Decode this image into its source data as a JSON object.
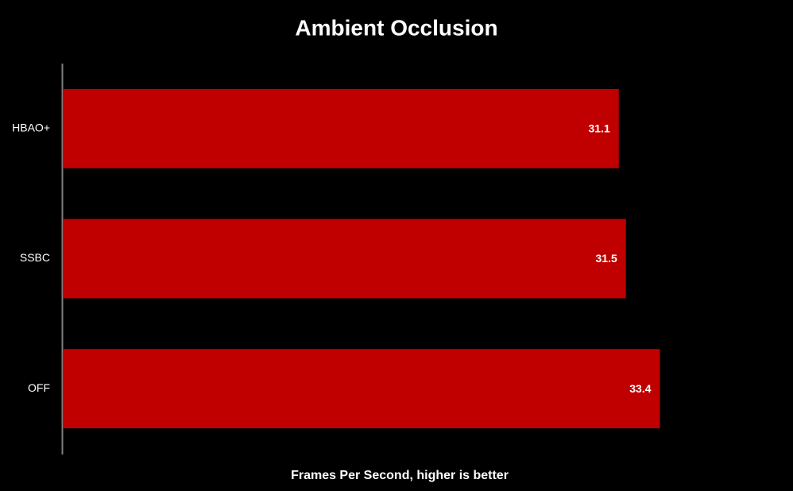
{
  "chart_data": {
    "type": "hbar",
    "title": "Ambient Occlusion",
    "x_label": "Frames Per Second, higher is better",
    "categories": [
      "HBAO+",
      "SSBC",
      "OFF"
    ],
    "values": [
      31.1,
      31.5,
      33.4
    ],
    "color": "#c00000",
    "xlim": [
      0,
      40
    ],
    "background": "#000000"
  }
}
